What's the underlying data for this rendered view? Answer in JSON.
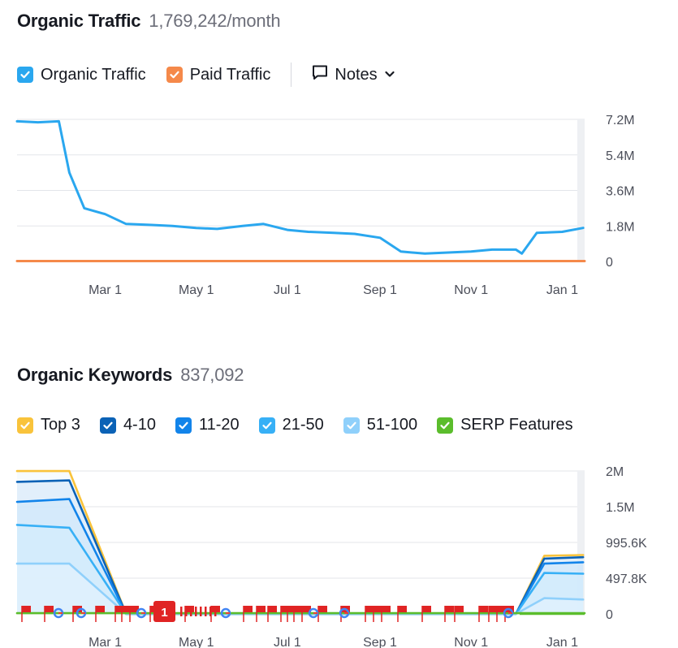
{
  "traffic": {
    "title": "Organic Traffic",
    "metric": "1,769,242/month",
    "legend": [
      {
        "label": "Organic Traffic",
        "color": "#2aa7ef"
      },
      {
        "label": "Paid Traffic",
        "color": "#f5894a"
      }
    ],
    "notes_label": "Notes"
  },
  "keywords": {
    "title": "Organic Keywords",
    "metric": "837,092",
    "legend": [
      {
        "label": "Top 3",
        "color": "#f9c33b"
      },
      {
        "label": "4-10",
        "color": "#0b62b6"
      },
      {
        "label": "11-20",
        "color": "#1284ea"
      },
      {
        "label": "21-50",
        "color": "#37b0f6"
      },
      {
        "label": "51-100",
        "color": "#8fd0fb"
      },
      {
        "label": "SERP Features",
        "color": "#5bbd2c"
      }
    ],
    "annotation_badge": "1"
  },
  "chart_data": [
    {
      "type": "line",
      "title": "Organic Traffic",
      "x_ticks": [
        "Mar 1",
        "May 1",
        "Jul 1",
        "Sep 1",
        "Nov 1",
        "Jan 1"
      ],
      "y_ticks": [
        "7.2M",
        "5.4M",
        "3.6M",
        "1.8M",
        "0"
      ],
      "ylim": [
        0,
        7200000
      ],
      "y_axis_side": "right",
      "grid": true,
      "series": [
        {
          "name": "Organic Traffic",
          "color": "#2aa7ef",
          "x": [
            "Jan 1",
            "Jan 15",
            "Jan 29",
            "Feb 5",
            "Feb 15",
            "Mar 1",
            "Mar 15",
            "Apr 1",
            "Apr 15",
            "May 1",
            "May 15",
            "Jun 1",
            "Jun 15",
            "Jul 1",
            "Jul 15",
            "Aug 1",
            "Aug 15",
            "Sep 1",
            "Sep 15",
            "Oct 1",
            "Oct 15",
            "Nov 1",
            "Nov 15",
            "Dec 1",
            "Dec 5",
            "Dec 15",
            "Jan 1",
            "Jan 15"
          ],
          "values": [
            7100000,
            7050000,
            7100000,
            4500000,
            2700000,
            2400000,
            1900000,
            1850000,
            1800000,
            1700000,
            1650000,
            1800000,
            1900000,
            1600000,
            1500000,
            1450000,
            1400000,
            1200000,
            500000,
            400000,
            450000,
            500000,
            600000,
            600000,
            400000,
            1450000,
            1500000,
            1700000
          ]
        },
        {
          "name": "Paid Traffic",
          "color": "#f5894a",
          "x": [
            "Jan 1",
            "Jan 15"
          ],
          "values": [
            20000,
            20000
          ]
        }
      ]
    },
    {
      "type": "area",
      "title": "Organic Keywords",
      "x_ticks": [
        "Mar 1",
        "May 1",
        "Jul 1",
        "Sep 1",
        "Nov 1",
        "Jan 1"
      ],
      "y_ticks": [
        "2M",
        "1.5M",
        "995.6K",
        "497.8K",
        "0"
      ],
      "ylim": [
        0,
        1991200
      ],
      "y_axis_side": "right",
      "grid": true,
      "series": [
        {
          "name": "Top 3",
          "color": "#f9c33b",
          "points": [
            [
              "Jan 1",
              1990000
            ],
            [
              "Feb 5",
              1990000
            ],
            [
              "Mar 15",
              0
            ],
            [
              "Dec 1",
              0
            ],
            [
              "Dec 20",
              810000
            ],
            [
              "Jan 15",
              820000
            ]
          ]
        },
        {
          "name": "4-10",
          "color": "#0b62b6",
          "points": [
            [
              "Jan 1",
              1840000
            ],
            [
              "Feb 5",
              1860000
            ],
            [
              "Mar 15",
              0
            ],
            [
              "Dec 1",
              0
            ],
            [
              "Dec 20",
              770000
            ],
            [
              "Jan 15",
              790000
            ]
          ]
        },
        {
          "name": "11-20",
          "color": "#1284ea",
          "points": [
            [
              "Jan 1",
              1560000
            ],
            [
              "Feb 5",
              1600000
            ],
            [
              "Mar 15",
              0
            ],
            [
              "Dec 1",
              0
            ],
            [
              "Dec 20",
              700000
            ],
            [
              "Jan 15",
              720000
            ]
          ]
        },
        {
          "name": "21-50",
          "color": "#37b0f6",
          "points": [
            [
              "Jan 1",
              1240000
            ],
            [
              "Feb 5",
              1200000
            ],
            [
              "Mar 15",
              0
            ],
            [
              "Dec 1",
              0
            ],
            [
              "Dec 20",
              570000
            ],
            [
              "Jan 15",
              560000
            ]
          ]
        },
        {
          "name": "51-100",
          "color": "#8fd0fb",
          "points": [
            [
              "Jan 1",
              700000
            ],
            [
              "Feb 5",
              700000
            ],
            [
              "Mar 15",
              0
            ],
            [
              "Dec 1",
              0
            ],
            [
              "Dec 20",
              220000
            ],
            [
              "Jan 15",
              200000
            ]
          ]
        },
        {
          "name": "SERP Features",
          "color": "#5bbd2c",
          "points": [
            [
              "Jan 1",
              10000
            ],
            [
              "Jan 15",
              10000
            ]
          ]
        }
      ]
    }
  ]
}
